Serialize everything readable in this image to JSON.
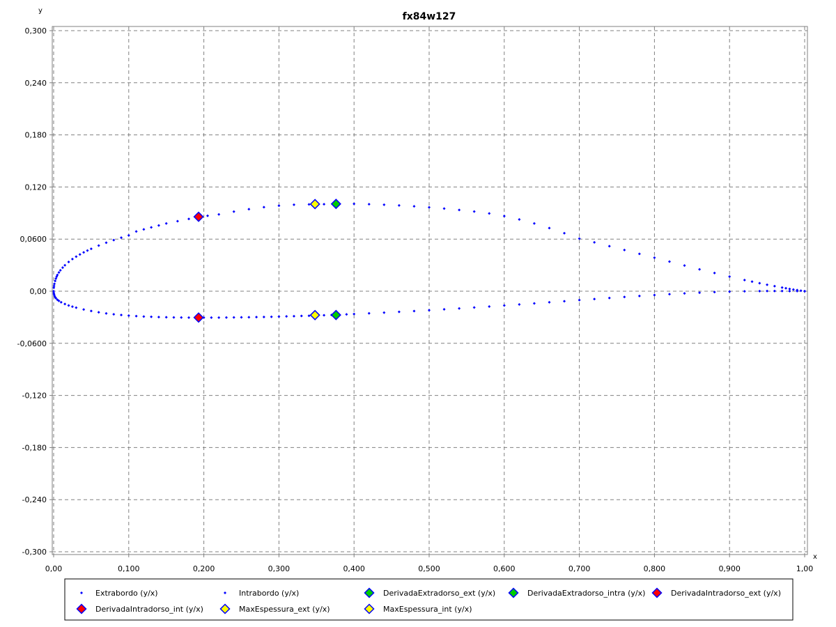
{
  "chart_data": {
    "type": "scatter",
    "title": "fx84w127",
    "xlabel": "x",
    "ylabel": "y",
    "xlim": [
      0.0,
      1.0
    ],
    "ylim": [
      -0.3,
      0.3
    ],
    "xticks": [
      "0,00",
      "0,100",
      "0,200",
      "0,300",
      "0,400",
      "0,500",
      "0,600",
      "0,700",
      "0,800",
      "0,900",
      "1,00"
    ],
    "yticks": [
      "0,300",
      "0,240",
      "0,180",
      "0,120",
      "0,0600",
      "0,00",
      "-0,0600",
      "-0,120",
      "-0,180",
      "-0,240",
      "-0,300"
    ],
    "grid": true,
    "legend_position": "bottom",
    "series": [
      {
        "name": "Extrabordo (y/x)",
        "color": "#0000ff",
        "marker": "small-diamond",
        "points": [
          [
            1.0,
            0.0
          ],
          [
            0.995,
            0.0006
          ],
          [
            0.99,
            0.0013
          ],
          [
            0.985,
            0.0019
          ],
          [
            0.98,
            0.0026
          ],
          [
            0.975,
            0.0034
          ],
          [
            0.97,
            0.0042
          ],
          [
            0.96,
            0.0058
          ],
          [
            0.95,
            0.0074
          ],
          [
            0.94,
            0.0092
          ],
          [
            0.93,
            0.011
          ],
          [
            0.92,
            0.0128
          ],
          [
            0.9,
            0.0168
          ],
          [
            0.88,
            0.021
          ],
          [
            0.86,
            0.0252
          ],
          [
            0.84,
            0.0296
          ],
          [
            0.82,
            0.0341
          ],
          [
            0.8,
            0.0386
          ],
          [
            0.78,
            0.043
          ],
          [
            0.76,
            0.0474
          ],
          [
            0.74,
            0.0518
          ],
          [
            0.72,
            0.0562
          ],
          [
            0.7,
            0.0606
          ],
          [
            0.68,
            0.0668
          ],
          [
            0.66,
            0.0727
          ],
          [
            0.64,
            0.078
          ],
          [
            0.62,
            0.0826
          ],
          [
            0.6,
            0.0865
          ],
          [
            0.58,
            0.0895
          ],
          [
            0.56,
            0.0917
          ],
          [
            0.54,
            0.0935
          ],
          [
            0.52,
            0.0952
          ],
          [
            0.5,
            0.0966
          ],
          [
            0.48,
            0.0978
          ],
          [
            0.46,
            0.0988
          ],
          [
            0.44,
            0.0996
          ],
          [
            0.42,
            0.1002
          ],
          [
            0.4,
            0.1006
          ],
          [
            0.376,
            0.1005
          ],
          [
            0.36,
            0.1002
          ],
          [
            0.348,
            0.1003
          ],
          [
            0.34,
            0.1
          ],
          [
            0.32,
            0.0996
          ],
          [
            0.3,
            0.0985
          ],
          [
            0.28,
            0.0968
          ],
          [
            0.26,
            0.0945
          ],
          [
            0.24,
            0.0916
          ],
          [
            0.22,
            0.0884
          ],
          [
            0.205,
            0.0868
          ],
          [
            0.193,
            0.0857
          ],
          [
            0.18,
            0.0832
          ],
          [
            0.165,
            0.0806
          ],
          [
            0.15,
            0.078
          ],
          [
            0.14,
            0.0757
          ],
          [
            0.13,
            0.0735
          ],
          [
            0.12,
            0.0712
          ],
          [
            0.11,
            0.0688
          ],
          [
            0.1,
            0.0643
          ],
          [
            0.09,
            0.0617
          ],
          [
            0.08,
            0.0589
          ],
          [
            0.07,
            0.0558
          ],
          [
            0.06,
            0.0525
          ],
          [
            0.05,
            0.0488
          ],
          [
            0.045,
            0.0468
          ],
          [
            0.04,
            0.0447
          ],
          [
            0.035,
            0.0423
          ],
          [
            0.03,
            0.0398
          ],
          [
            0.025,
            0.037
          ],
          [
            0.02,
            0.0337
          ],
          [
            0.015,
            0.0299
          ],
          [
            0.012,
            0.0272
          ],
          [
            0.009,
            0.0241
          ],
          [
            0.007,
            0.0216
          ],
          [
            0.005,
            0.0187
          ],
          [
            0.004,
            0.0168
          ],
          [
            0.003,
            0.0145
          ],
          [
            0.002,
            0.0118
          ],
          [
            0.001,
            0.0085
          ],
          [
            0.0005,
            0.006
          ],
          [
            0.0002,
            0.004
          ]
        ]
      },
      {
        "name": "Intrabordo (y/x)",
        "color": "#0000ff",
        "marker": "small-diamond",
        "points": [
          [
            0.0,
            0.0
          ],
          [
            0.0002,
            -0.002
          ],
          [
            0.0005,
            -0.0035
          ],
          [
            0.001,
            -0.005
          ],
          [
            0.002,
            -0.0068
          ],
          [
            0.003,
            -0.008
          ],
          [
            0.005,
            -0.0098
          ],
          [
            0.007,
            -0.0111
          ],
          [
            0.01,
            -0.0127
          ],
          [
            0.015,
            -0.0147
          ],
          [
            0.02,
            -0.0164
          ],
          [
            0.025,
            -0.0177
          ],
          [
            0.03,
            -0.019
          ],
          [
            0.04,
            -0.0211
          ],
          [
            0.05,
            -0.0228
          ],
          [
            0.06,
            -0.0243
          ],
          [
            0.07,
            -0.0256
          ],
          [
            0.08,
            -0.0266
          ],
          [
            0.09,
            -0.0274
          ],
          [
            0.1,
            -0.0281
          ],
          [
            0.11,
            -0.0287
          ],
          [
            0.12,
            -0.0292
          ],
          [
            0.13,
            -0.0295
          ],
          [
            0.14,
            -0.0298
          ],
          [
            0.15,
            -0.03
          ],
          [
            0.16,
            -0.0302
          ],
          [
            0.17,
            -0.0303
          ],
          [
            0.18,
            -0.0304
          ],
          [
            0.193,
            -0.0303
          ],
          [
            0.2,
            -0.0304
          ],
          [
            0.21,
            -0.0304
          ],
          [
            0.22,
            -0.0304
          ],
          [
            0.23,
            -0.0303
          ],
          [
            0.24,
            -0.0302
          ],
          [
            0.25,
            -0.0301
          ],
          [
            0.26,
            -0.03
          ],
          [
            0.27,
            -0.0298
          ],
          [
            0.28,
            -0.0297
          ],
          [
            0.29,
            -0.0295
          ],
          [
            0.3,
            -0.0293
          ],
          [
            0.31,
            -0.029
          ],
          [
            0.32,
            -0.0288
          ],
          [
            0.33,
            -0.0285
          ],
          [
            0.34,
            -0.0283
          ],
          [
            0.348,
            -0.0275
          ],
          [
            0.36,
            -0.0277
          ],
          [
            0.37,
            -0.0274
          ],
          [
            0.376,
            -0.0274
          ],
          [
            0.39,
            -0.0267
          ],
          [
            0.4,
            -0.0263
          ],
          [
            0.42,
            -0.0255
          ],
          [
            0.44,
            -0.0247
          ],
          [
            0.46,
            -0.0238
          ],
          [
            0.48,
            -0.0229
          ],
          [
            0.5,
            -0.0219
          ],
          [
            0.52,
            -0.0209
          ],
          [
            0.54,
            -0.0199
          ],
          [
            0.56,
            -0.0188
          ],
          [
            0.58,
            -0.0176
          ],
          [
            0.6,
            -0.0164
          ],
          [
            0.62,
            -0.0152
          ],
          [
            0.64,
            -0.014
          ],
          [
            0.66,
            -0.0127
          ],
          [
            0.68,
            -0.0115
          ],
          [
            0.7,
            -0.0102
          ],
          [
            0.72,
            -0.009
          ],
          [
            0.74,
            -0.0078
          ],
          [
            0.76,
            -0.0066
          ],
          [
            0.78,
            -0.0055
          ],
          [
            0.8,
            -0.0044
          ],
          [
            0.82,
            -0.0034
          ],
          [
            0.84,
            -0.0025
          ],
          [
            0.86,
            -0.0017
          ],
          [
            0.88,
            -0.001
          ],
          [
            0.9,
            -0.0005
          ],
          [
            0.92,
            -0.0001
          ],
          [
            0.94,
            0.0001
          ],
          [
            0.95,
            0.0002
          ],
          [
            0.96,
            0.0002
          ],
          [
            0.97,
            0.0002
          ],
          [
            0.98,
            0.0001
          ],
          [
            0.99,
            0.0001
          ],
          [
            1.0,
            0.0
          ]
        ]
      },
      {
        "name": "DerivadaExtradorso_ext (y/x)",
        "color": "#00cc00",
        "marker": "diamond",
        "points": [
          [
            0.376,
            0.1005
          ]
        ]
      },
      {
        "name": "DerivadaExtradorso_intra (y/x)",
        "color": "#00cc00",
        "marker": "diamond",
        "points": [
          [
            0.376,
            -0.0274
          ]
        ]
      },
      {
        "name": "DerivadaIntradorso_ext (y/x)",
        "color": "#ff0000",
        "marker": "diamond",
        "points": [
          [
            0.193,
            0.0857
          ]
        ]
      },
      {
        "name": "DerivadaIntradorso_int (y/x)",
        "color": "#ff0000",
        "marker": "diamond",
        "points": [
          [
            0.193,
            -0.0303
          ]
        ]
      },
      {
        "name": "MaxEspessura_ext (y/x)",
        "color": "#ffff00",
        "marker": "diamond",
        "points": [
          [
            0.348,
            0.1003
          ]
        ]
      },
      {
        "name": "MaxEspessura_int (y/x)",
        "color": "#ffff00",
        "marker": "diamond",
        "points": [
          [
            0.348,
            -0.0275
          ]
        ]
      }
    ],
    "marker_outline": "#0000ff",
    "grid_color": "#808080"
  }
}
